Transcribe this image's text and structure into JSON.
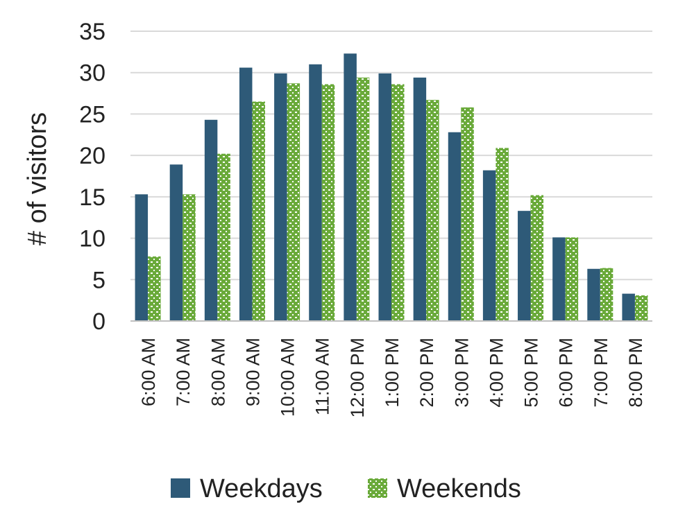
{
  "chart_data": {
    "type": "bar",
    "title": "",
    "xlabel": "",
    "ylabel": "# of visitors",
    "ylim": [
      0,
      35
    ],
    "yticks": [
      0,
      5,
      10,
      15,
      20,
      25,
      30,
      35
    ],
    "grid": true,
    "legend_position": "bottom",
    "categories": [
      "6:00 AM",
      "7:00 AM",
      "8:00 AM",
      "9:00 AM",
      "10:00 AM",
      "11:00 AM",
      "12:00 PM",
      "1:00 PM",
      "2:00 PM",
      "3:00 PM",
      "4:00 PM",
      "5:00 PM",
      "6:00 PM",
      "7:00 PM",
      "8:00 PM"
    ],
    "series": [
      {
        "name": "Weekdays",
        "color": "#2e5a78",
        "pattern": "solid",
        "values": [
          15.3,
          18.9,
          24.3,
          30.6,
          29.9,
          31.0,
          32.3,
          29.9,
          29.4,
          22.8,
          18.2,
          13.3,
          10.1,
          6.3,
          3.3
        ]
      },
      {
        "name": "Weekends",
        "color": "#6aaa3a",
        "pattern": "checker",
        "values": [
          7.8,
          15.3,
          20.2,
          26.5,
          28.7,
          28.6,
          29.4,
          28.6,
          26.7,
          25.8,
          20.9,
          15.2,
          10.1,
          6.4,
          3.1
        ]
      }
    ]
  }
}
